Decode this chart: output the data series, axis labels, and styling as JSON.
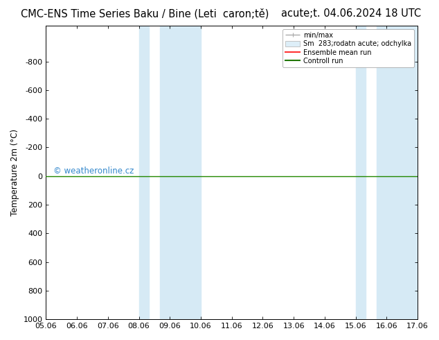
{
  "title_left": "CMC-ENS Time Series Baku / Bine (Leti  caron;tě)",
  "title_right": "acute;t. 04.06.2024 18 UTC",
  "ylabel": "Temperature 2m (°C)",
  "ylim_bottom": 1000,
  "ylim_top": -1050,
  "yticks": [
    -800,
    -600,
    -400,
    -200,
    0,
    200,
    400,
    600,
    800,
    1000
  ],
  "xlim_start": 0,
  "xlim_end": 12,
  "xtick_labels": [
    "05.06",
    "06.06",
    "07.06",
    "08.06",
    "09.06",
    "10.06",
    "11.06",
    "12.06",
    "13.06",
    "14.06",
    "15.06",
    "16.06",
    "17.06"
  ],
  "shaded_regions": [
    [
      3.0,
      3.33
    ],
    [
      3.67,
      5.0
    ],
    [
      10.0,
      10.33
    ],
    [
      10.67,
      12.0
    ]
  ],
  "shaded_color": "#d6eaf5",
  "flat_line_y": 0,
  "flat_line_color": "#228800",
  "legend_labels": [
    "min/max",
    "Sm  283;rodatn acute; odchylka",
    "Ensemble mean run",
    "Controll run"
  ],
  "legend_line_color": "#aaaaaa",
  "legend_patch_color": "#ddeef8",
  "legend_red": "#ff3333",
  "legend_green": "#227700",
  "watermark": "© weatheronline.cz",
  "watermark_color": "#3388cc",
  "bg_color": "#ffffff",
  "plot_bg_color": "#ffffff",
  "title_fontsize": 10.5,
  "axis_label_fontsize": 8.5,
  "tick_fontsize": 8
}
